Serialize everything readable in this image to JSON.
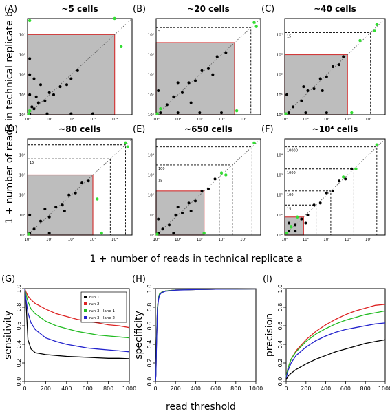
{
  "figure": {
    "shared_ylabel": "1 + number of reads in technical replicate b",
    "shared_xlabel": "1 + number of reads in technical replicate a",
    "bottom_xlabel": "read threshold"
  },
  "chart_data": [
    {
      "type": "scatter",
      "panel": "(A)",
      "title": "~5 cells",
      "scale": "log",
      "axis_tick_labels": [
        "10⁰",
        "10¹",
        "10²",
        "10³",
        "10⁴"
      ],
      "shaded_limit_log10": 4.0,
      "thresholds": [],
      "black_points_log10": [
        [
          0.1,
          0.05
        ],
        [
          0.2,
          0.4
        ],
        [
          0.3,
          0.3
        ],
        [
          0.5,
          0.6
        ],
        [
          0.8,
          0.7
        ],
        [
          1.0,
          1.1
        ],
        [
          1.2,
          1.0
        ],
        [
          1.5,
          1.4
        ],
        [
          2.0,
          1.8
        ],
        [
          2.3,
          2.2
        ],
        [
          0.1,
          1.0
        ],
        [
          0.1,
          2.0
        ],
        [
          0.1,
          2.8
        ],
        [
          0.9,
          0.05
        ],
        [
          2.0,
          0.05
        ],
        [
          3.0,
          0.05
        ],
        [
          0.4,
          0.9
        ],
        [
          0.6,
          1.5
        ],
        [
          0.3,
          1.8
        ],
        [
          1.8,
          1.5
        ]
      ],
      "green_points_log10": [
        [
          0.05,
          0.05
        ],
        [
          0.1,
          0.2
        ],
        [
          4.3,
          3.4
        ],
        [
          4.0,
          4.8
        ],
        [
          0.1,
          4.7
        ]
      ],
      "colors": {
        "black": "#000000",
        "green": "#33dd33",
        "shade": "#bdbdbd",
        "border": "#d23a3a"
      }
    },
    {
      "type": "scatter",
      "panel": "(B)",
      "title": "~20 cells",
      "scale": "log",
      "axis_tick_labels": [
        "10⁰",
        "10¹",
        "10²",
        "10³",
        "10⁴"
      ],
      "shaded_limit_log10": 3.6,
      "thresholds": [
        {
          "label": "5",
          "log10": 4.35
        }
      ],
      "black_points_log10": [
        [
          0.5,
          0.5
        ],
        [
          0.8,
          0.9
        ],
        [
          1.2,
          1.1
        ],
        [
          1.5,
          1.6
        ],
        [
          1.8,
          1.7
        ],
        [
          2.1,
          2.2
        ],
        [
          2.4,
          2.3
        ],
        [
          2.8,
          2.9
        ],
        [
          3.2,
          3.1
        ],
        [
          0.2,
          0.1
        ],
        [
          1.0,
          0.1
        ],
        [
          2.0,
          0.1
        ],
        [
          3.0,
          0.1
        ],
        [
          0.1,
          1.2
        ],
        [
          1.0,
          1.6
        ],
        [
          2.6,
          2.0
        ],
        [
          1.6,
          0.6
        ]
      ],
      "green_points_log10": [
        [
          0.05,
          0.05
        ],
        [
          0.2,
          0.3
        ],
        [
          4.5,
          4.6
        ],
        [
          4.6,
          4.4
        ],
        [
          3.7,
          0.2
        ]
      ],
      "colors": {
        "black": "#000000",
        "green": "#33dd33",
        "shade": "#bdbdbd",
        "border": "#d23a3a"
      }
    },
    {
      "type": "scatter",
      "panel": "(C)",
      "title": "~40 cells",
      "scale": "log",
      "axis_tick_labels": [
        "10⁰",
        "10¹",
        "10²",
        "10³",
        "10⁴"
      ],
      "shaded_limit_log10": 3.0,
      "thresholds": [
        {
          "label": "15",
          "log10": 4.1
        }
      ],
      "black_points_log10": [
        [
          0.4,
          0.4
        ],
        [
          0.8,
          0.7
        ],
        [
          1.1,
          1.2
        ],
        [
          1.4,
          1.3
        ],
        [
          1.7,
          1.8
        ],
        [
          2.0,
          1.9
        ],
        [
          2.3,
          2.4
        ],
        [
          2.6,
          2.5
        ],
        [
          0.2,
          0.1
        ],
        [
          1.0,
          0.1
        ],
        [
          2.0,
          0.1
        ],
        [
          0.1,
          1.0
        ],
        [
          0.9,
          1.4
        ],
        [
          1.8,
          1.2
        ],
        [
          2.8,
          2.9
        ]
      ],
      "green_points_log10": [
        [
          0.05,
          0.05
        ],
        [
          3.2,
          0.1
        ],
        [
          3.6,
          3.7
        ],
        [
          4.3,
          4.2
        ],
        [
          4.4,
          4.5
        ]
      ],
      "colors": {
        "black": "#000000",
        "green": "#33dd33",
        "shade": "#bdbdbd",
        "border": "#d23a3a"
      }
    },
    {
      "type": "scatter",
      "panel": "(D)",
      "title": "~80 cells",
      "scale": "log",
      "axis_tick_labels": [
        "10⁰",
        "10¹",
        "10²",
        "10³",
        "10⁴"
      ],
      "shaded_limit_log10": 3.0,
      "thresholds": [
        {
          "label": "15",
          "log10": 3.8
        },
        {
          "label": "",
          "log10": 4.5
        }
      ],
      "black_points_log10": [
        [
          0.3,
          0.3
        ],
        [
          0.6,
          0.7
        ],
        [
          1.0,
          0.9
        ],
        [
          1.3,
          1.4
        ],
        [
          1.6,
          1.5
        ],
        [
          1.9,
          2.0
        ],
        [
          2.2,
          2.1
        ],
        [
          2.5,
          2.6
        ],
        [
          2.8,
          2.7
        ],
        [
          0.1,
          0.1
        ],
        [
          1.0,
          0.1
        ],
        [
          0.1,
          1.0
        ],
        [
          0.8,
          1.3
        ],
        [
          1.7,
          1.2
        ]
      ],
      "green_points_log10": [
        [
          0.05,
          0.05
        ],
        [
          3.2,
          1.8
        ],
        [
          3.4,
          0.1
        ],
        [
          4.5,
          4.6
        ],
        [
          4.6,
          4.4
        ]
      ],
      "colors": {
        "black": "#000000",
        "green": "#33dd33",
        "shade": "#bdbdbd",
        "border": "#d23a3a"
      }
    },
    {
      "type": "scatter",
      "panel": "(E)",
      "title": "~650 cells",
      "scale": "log",
      "axis_tick_labels": [
        "10⁰",
        "10¹",
        "10²",
        "10³",
        "10⁴"
      ],
      "shaded_limit_log10": 2.2,
      "thresholds": [
        {
          "label": "15",
          "log10": 2.9
        },
        {
          "label": "100",
          "log10": 3.5
        },
        {
          "label": "",
          "log10": 4.4
        }
      ],
      "black_points_log10": [
        [
          0.3,
          0.3
        ],
        [
          0.6,
          0.5
        ],
        [
          0.9,
          1.0
        ],
        [
          1.2,
          1.1
        ],
        [
          1.5,
          1.6
        ],
        [
          1.8,
          1.7
        ],
        [
          2.1,
          2.2
        ],
        [
          2.4,
          2.3
        ],
        [
          2.7,
          2.8
        ],
        [
          0.1,
          0.1
        ],
        [
          0.8,
          0.1
        ],
        [
          0.1,
          0.8
        ],
        [
          1.0,
          1.4
        ],
        [
          1.6,
          1.2
        ]
      ],
      "green_points_log10": [
        [
          0.05,
          0.05
        ],
        [
          3.0,
          3.1
        ],
        [
          3.2,
          3.0
        ],
        [
          4.5,
          4.6
        ],
        [
          2.2,
          0.1
        ]
      ],
      "colors": {
        "black": "#000000",
        "green": "#33dd33",
        "shade": "#bdbdbd",
        "border": "#d23a3a"
      }
    },
    {
      "type": "scatter",
      "panel": "(F)",
      "title": "~10⁴ cells",
      "scale": "log",
      "axis_tick_labels": [
        "10⁰",
        "10¹",
        "10²",
        "10³",
        "10⁴"
      ],
      "shaded_limit_log10": 0.9,
      "thresholds": [
        {
          "label": "15",
          "log10": 1.5
        },
        {
          "label": "100",
          "log10": 2.2
        },
        {
          "label": "1000",
          "log10": 3.3
        },
        {
          "label": "10000",
          "log10": 4.4
        }
      ],
      "black_points_log10": [
        [
          0.2,
          0.2
        ],
        [
          0.5,
          0.5
        ],
        [
          0.8,
          0.8
        ],
        [
          1.1,
          1.0
        ],
        [
          1.4,
          1.5
        ],
        [
          1.7,
          1.6
        ],
        [
          2.0,
          2.1
        ],
        [
          2.3,
          2.2
        ],
        [
          2.6,
          2.7
        ],
        [
          2.9,
          2.8
        ],
        [
          3.2,
          3.3
        ],
        [
          0.5,
          0.2
        ],
        [
          0.2,
          0.6
        ],
        [
          1.0,
          0.6
        ]
      ],
      "green_points_log10": [
        [
          0.1,
          0.1
        ],
        [
          0.3,
          0.4
        ],
        [
          2.8,
          2.9
        ],
        [
          3.4,
          3.3
        ],
        [
          4.4,
          4.5
        ],
        [
          0.6,
          0.9
        ]
      ],
      "colors": {
        "black": "#000000",
        "green": "#33dd33",
        "shade": "#bdbdbd",
        "border": "#d23a3a"
      }
    },
    {
      "type": "line",
      "panel": "(G)",
      "ylabel": "sensitivity",
      "xlim": [
        0,
        1000
      ],
      "ylim": [
        0,
        1
      ],
      "xticks": [
        0,
        200,
        400,
        600,
        800,
        1000
      ],
      "yticks": [
        0.0,
        0.2,
        0.4,
        0.6,
        0.8,
        1.0
      ],
      "x": [
        0,
        10,
        30,
        60,
        100,
        200,
        300,
        400,
        500,
        600,
        700,
        800,
        900,
        1000
      ],
      "series": [
        {
          "name": "run 1",
          "color": "#000000",
          "values": [
            1.0,
            0.9,
            0.45,
            0.35,
            0.31,
            0.29,
            0.28,
            0.27,
            0.265,
            0.26,
            0.255,
            0.25,
            0.25,
            0.245
          ]
        },
        {
          "name": "run 2",
          "color": "#dd2222",
          "values": [
            1.0,
            0.97,
            0.92,
            0.88,
            0.84,
            0.78,
            0.73,
            0.7,
            0.67,
            0.65,
            0.63,
            0.61,
            0.6,
            0.58
          ]
        },
        {
          "name": "run 3 - lane 1",
          "color": "#22bb22",
          "values": [
            1.0,
            0.95,
            0.86,
            0.78,
            0.73,
            0.65,
            0.6,
            0.57,
            0.54,
            0.52,
            0.5,
            0.49,
            0.48,
            0.47
          ]
        },
        {
          "name": "run 3 - lane 2",
          "color": "#2222cc",
          "values": [
            1.0,
            0.9,
            0.74,
            0.63,
            0.56,
            0.47,
            0.43,
            0.4,
            0.38,
            0.36,
            0.35,
            0.34,
            0.33,
            0.32
          ]
        }
      ],
      "legend": "top-right"
    },
    {
      "type": "line",
      "panel": "(H)",
      "ylabel": "specificity",
      "xlim": [
        0,
        1000
      ],
      "ylim": [
        0,
        1
      ],
      "xticks": [
        0,
        200,
        400,
        600,
        800,
        1000
      ],
      "yticks": [
        0.0,
        0.2,
        0.4,
        0.6,
        0.8,
        1.0
      ],
      "x": [
        0,
        5,
        10,
        20,
        30,
        40,
        60,
        100,
        200,
        400,
        600,
        800,
        1000
      ],
      "series": [
        {
          "name": "run 1",
          "color": "#000000",
          "values": [
            0.0,
            0.1,
            0.45,
            0.8,
            0.9,
            0.94,
            0.96,
            0.975,
            0.985,
            0.99,
            0.993,
            0.995,
            0.996
          ]
        },
        {
          "name": "run 2",
          "color": "#dd2222",
          "values": [
            0.0,
            0.08,
            0.4,
            0.78,
            0.89,
            0.93,
            0.96,
            0.975,
            0.985,
            0.99,
            0.993,
            0.995,
            0.996
          ]
        },
        {
          "name": "run 3 - lane 1",
          "color": "#22bb22",
          "values": [
            0.0,
            0.09,
            0.42,
            0.79,
            0.9,
            0.94,
            0.96,
            0.975,
            0.985,
            0.99,
            0.993,
            0.995,
            0.996
          ]
        },
        {
          "name": "run 3 - lane 2",
          "color": "#2222cc",
          "values": [
            0.0,
            0.07,
            0.38,
            0.77,
            0.88,
            0.93,
            0.955,
            0.972,
            0.984,
            0.99,
            0.993,
            0.995,
            0.996
          ]
        }
      ]
    },
    {
      "type": "line",
      "panel": "(I)",
      "ylabel": "precision",
      "xlim": [
        0,
        1000
      ],
      "ylim": [
        0,
        1
      ],
      "xticks": [
        0,
        200,
        400,
        600,
        800,
        1000
      ],
      "yticks": [
        0.0,
        0.2,
        0.4,
        0.6,
        0.8,
        1.0
      ],
      "x": [
        0,
        20,
        50,
        100,
        200,
        300,
        400,
        500,
        600,
        700,
        800,
        900,
        1000
      ],
      "series": [
        {
          "name": "run 1",
          "color": "#000000",
          "values": [
            0.02,
            0.06,
            0.09,
            0.13,
            0.19,
            0.24,
            0.28,
            0.32,
            0.35,
            0.38,
            0.41,
            0.43,
            0.45
          ]
        },
        {
          "name": "run 2",
          "color": "#dd2222",
          "values": [
            0.05,
            0.15,
            0.24,
            0.33,
            0.45,
            0.54,
            0.61,
            0.67,
            0.72,
            0.76,
            0.79,
            0.82,
            0.83
          ]
        },
        {
          "name": "run 3 - lane 1",
          "color": "#22bb22",
          "values": [
            0.05,
            0.15,
            0.24,
            0.32,
            0.43,
            0.51,
            0.57,
            0.62,
            0.66,
            0.69,
            0.72,
            0.74,
            0.76
          ]
        },
        {
          "name": "run 3 - lane 2",
          "color": "#2222cc",
          "values": [
            0.04,
            0.12,
            0.2,
            0.28,
            0.37,
            0.44,
            0.49,
            0.53,
            0.56,
            0.58,
            0.6,
            0.62,
            0.63
          ]
        }
      ]
    }
  ]
}
